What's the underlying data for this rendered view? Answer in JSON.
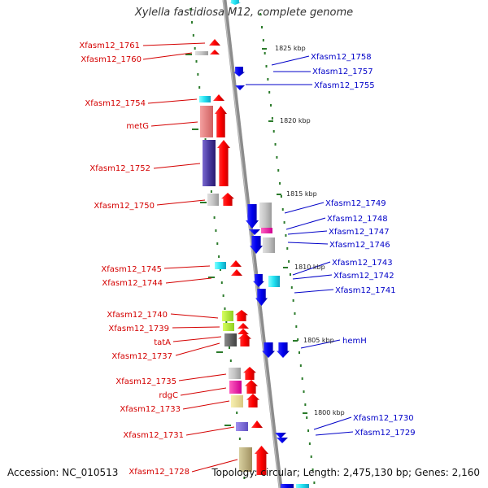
{
  "title": "Xylella fastidiosa M12, complete genome",
  "footer": {
    "accession": "Accession: NC_010513",
    "summary": "Topology: circular; Length: 2,475,130 bp; Genes: 2,160"
  },
  "colors": {
    "forward_label": "#d40000",
    "reverse_label": "#0000c8",
    "backbone": "#8c8c8c",
    "tick": "#2a7a2a"
  },
  "kbp_marks": [
    "1825 kbp",
    "1820 kbp",
    "1815 kbp",
    "1810 kbp",
    "1805 kbp",
    "1800 kbp"
  ],
  "left_genes": [
    "Xfasm12_1761",
    "Xfasm12_1760",
    "Xfasm12_1754",
    "metG",
    "Xfasm12_1752",
    "Xfasm12_1750",
    "Xfasm12_1745",
    "Xfasm12_1744",
    "Xfasm12_1740",
    "Xfasm12_1739",
    "tatA",
    "Xfasm12_1737",
    "Xfasm12_1735",
    "rdgC",
    "Xfasm12_1733",
    "Xfasm12_1731",
    "Xfasm12_1728"
  ],
  "right_genes": [
    "Xfasm12_1758",
    "Xfasm12_1757",
    "Xfasm12_1755",
    "Xfasm12_1749",
    "Xfasm12_1748",
    "Xfasm12_1747",
    "Xfasm12_1746",
    "Xfasm12_1743",
    "Xfasm12_1742",
    "Xfasm12_1741",
    "hemH",
    "Xfasm12_1730",
    "Xfasm12_1729"
  ]
}
